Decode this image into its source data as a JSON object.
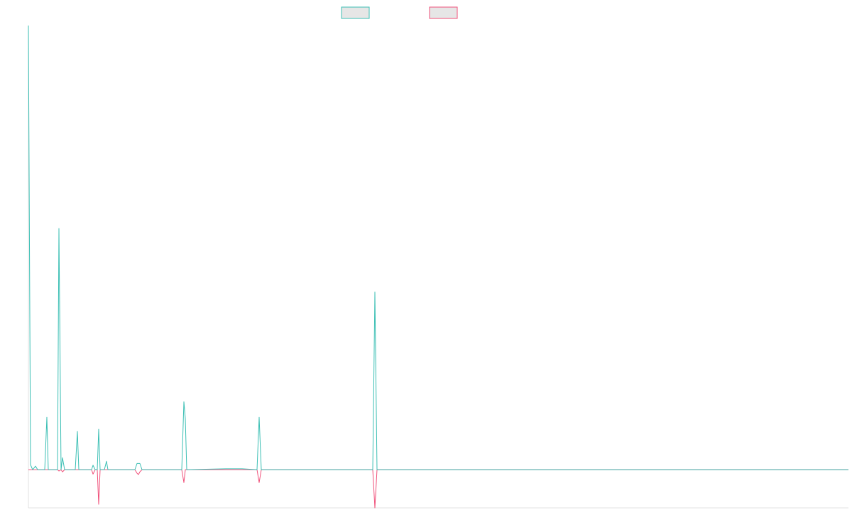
{
  "chart_data": {
    "type": "line",
    "x": [
      0,
      3,
      6,
      10,
      13,
      23,
      26,
      28,
      40,
      41,
      43,
      46,
      48,
      51,
      66,
      69,
      71,
      88,
      89,
      91,
      94,
      97,
      99,
      101,
      107,
      110,
      112,
      150,
      153,
      155,
      157,
      160,
      216,
      219,
      221,
      223,
      278,
      301,
      322,
      325,
      328,
      485,
      488,
      491,
      1155
    ],
    "xlim": [
      0,
      1155
    ],
    "ylim": [
      -8.6,
      100
    ],
    "series": [
      {
        "color": "#f0507a",
        "values": [
          0,
          0,
          0,
          0,
          0,
          0,
          0,
          0,
          0,
          0,
          -0.3,
          0,
          -0.5,
          0,
          0,
          0,
          0,
          0,
          0,
          -1.0,
          0,
          0,
          -7.8,
          0,
          0,
          0,
          0,
          0,
          -0.8,
          -1.1,
          -0.5,
          0,
          0,
          -2.9,
          0,
          0,
          0,
          0,
          0,
          -2.9,
          0,
          0,
          -8.6,
          0,
          0
        ]
      },
      {
        "color": "#3bbfb4",
        "values": [
          100,
          1.1,
          0,
          0.8,
          0,
          0,
          11.8,
          0,
          0,
          0,
          54.3,
          0,
          2.7,
          0,
          0,
          8.6,
          0,
          0,
          0,
          1.0,
          0,
          0,
          9.1,
          0,
          0,
          1.9,
          0,
          0,
          1.4,
          1.4,
          1.4,
          0,
          0,
          15.3,
          11.5,
          0,
          0.2,
          0.2,
          0,
          11.8,
          0,
          0,
          40,
          0,
          0
        ]
      }
    ]
  }
}
